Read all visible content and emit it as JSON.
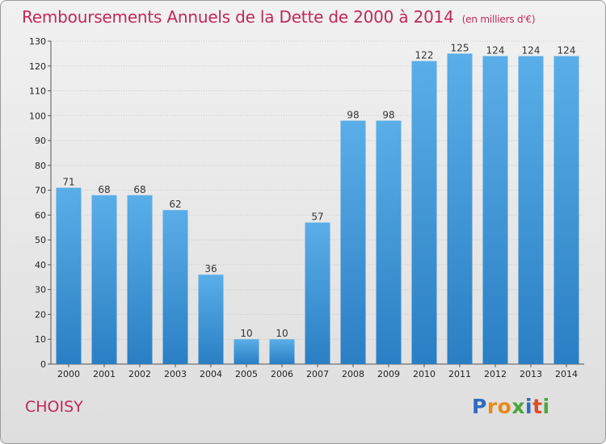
{
  "header": {
    "title": "Remboursements Annuels de la Dette de 2000 à 2014",
    "subtitle": "(en milliers d'€)"
  },
  "footer": {
    "town": "CHOISY",
    "logo_text": "Proxiti"
  },
  "chart_data": {
    "type": "bar",
    "title": "Remboursements Annuels de la Dette de 2000 à 2014",
    "subtitle": "(en milliers d'€)",
    "categories": [
      "2000",
      "2001",
      "2002",
      "2003",
      "2004",
      "2005",
      "2006",
      "2007",
      "2008",
      "2009",
      "2010",
      "2011",
      "2012",
      "2013",
      "2014"
    ],
    "values": [
      71,
      68,
      68,
      62,
      36,
      10,
      10,
      57,
      98,
      98,
      122,
      125,
      124,
      124,
      124
    ],
    "ylim": [
      0,
      130
    ],
    "ytick_step": 10,
    "grid": true,
    "bar_color_top": "#5aaee8",
    "bar_color_bottom": "#2a7fc4"
  }
}
